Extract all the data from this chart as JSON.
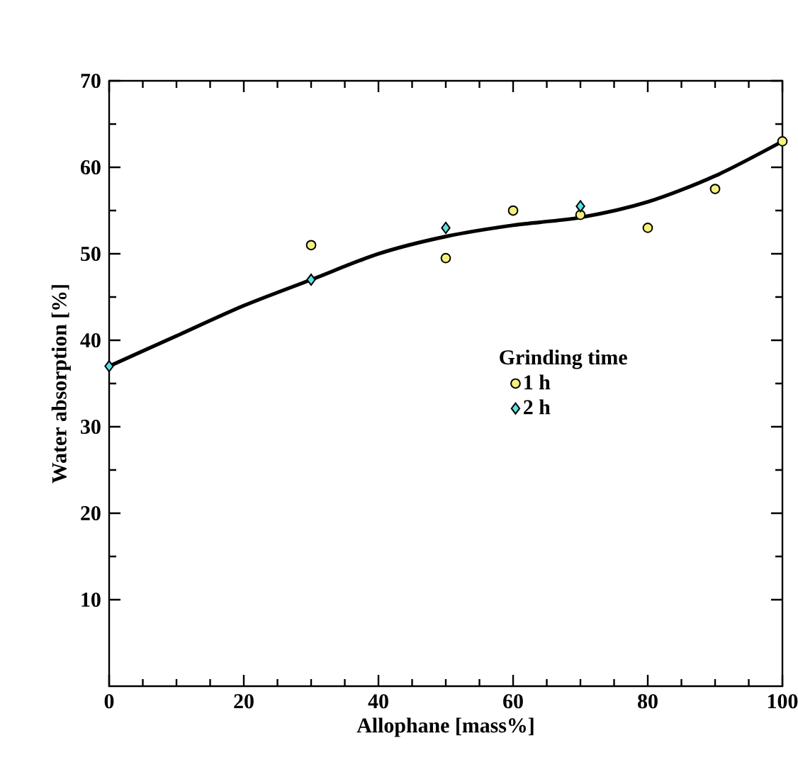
{
  "chart_data": {
    "type": "scatter",
    "xlabel": "Allophane [mass%]",
    "ylabel": "Water absorption [%]",
    "legend_title": "Grinding time",
    "legend": "right",
    "xlim": [
      0,
      100
    ],
    "ylim": [
      0,
      70
    ],
    "xticks": [
      0,
      20,
      40,
      60,
      80,
      100
    ],
    "yticks": [
      10,
      20,
      30,
      40,
      50,
      60,
      70
    ],
    "grid": false,
    "series": [
      {
        "name": "1 h",
        "color": "#f5f07a",
        "marker": "circle",
        "x": [
          30,
          50,
          60,
          70,
          80,
          90,
          100
        ],
        "values": [
          51,
          49.5,
          55,
          54.5,
          53,
          57.5,
          63
        ]
      },
      {
        "name": "2 h",
        "color": "#5ce0e0",
        "marker": "diamond",
        "x": [
          0,
          30,
          50,
          70
        ],
        "values": [
          37,
          47,
          53,
          55.5
        ]
      },
      {
        "type": "line",
        "color": "#000000",
        "marker": "none",
        "x": [
          0,
          10,
          20,
          30,
          40,
          50,
          60,
          70,
          80,
          90,
          100
        ],
        "values": [
          37,
          40.5,
          44,
          47,
          50,
          52,
          53.3,
          54.2,
          56,
          59,
          63
        ]
      }
    ]
  }
}
